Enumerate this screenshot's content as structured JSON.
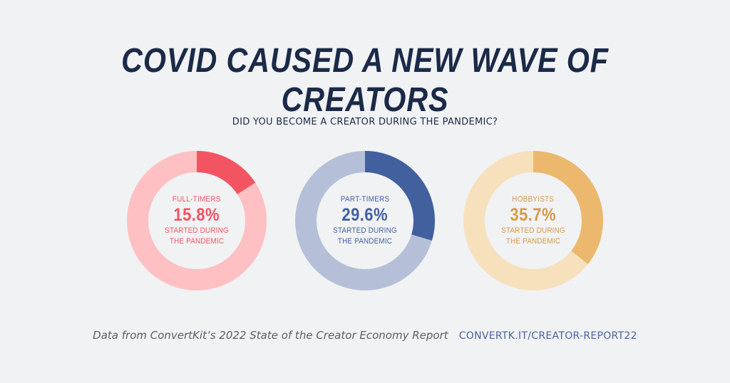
{
  "header": {
    "title": "COVID CAUSED A NEW WAVE OF CREATORS",
    "question": "DID YOU BECOME A CREATOR DURING THE PANDEMIC?"
  },
  "chart_data": {
    "type": "pie",
    "title": "COVID CAUSED A NEW WAVE OF CREATORS",
    "subtitle": "DID YOU BECOME A CREATOR DURING THE PANDEMIC?",
    "charts": [
      {
        "category": "FULL-TIMERS",
        "value": 15.8,
        "value_label": "15.8%",
        "note": "STARTED DURING THE PANDEMIC",
        "accent_color": "#f25561",
        "track_color": "#fec0c3",
        "text_color": "#f25561"
      },
      {
        "category": "PART-TIMERS",
        "value": 29.6,
        "value_label": "29.6%",
        "note": "STARTED DURING THE PANDEMIC",
        "accent_color": "#43609e",
        "track_color": "#b5c0d8",
        "text_color": "#43609e"
      },
      {
        "category": "HOBBYISTS",
        "value": 35.7,
        "value_label": "35.7%",
        "note": "STARTED DURING THE PANDEMIC",
        "accent_color": "#ebb86e",
        "track_color": "#f7e1bc",
        "text_color": "#d79a48"
      }
    ]
  },
  "footer": {
    "source": "Data from ConvertKit’s 2022 State of the Creator Economy Report",
    "link": "CONVERTK.IT/CREATOR-REPORT22"
  },
  "colors": {
    "background": "#f1f2f4",
    "title": "#1b2a48",
    "source": "#5a5e66",
    "link": "#4a62a0"
  }
}
